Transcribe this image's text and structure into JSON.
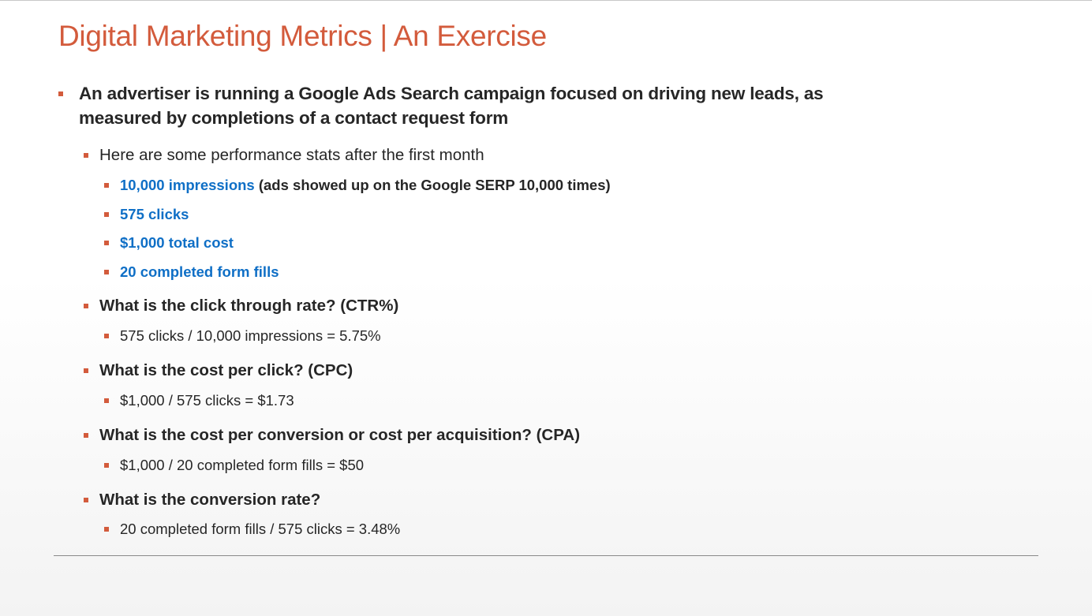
{
  "title": "Digital Marketing Metrics | An Exercise",
  "intro": {
    "line1": "An advertiser is running a Google Ads Search campaign focused on driving new leads, as",
    "line2": "measured by completions of a contact request form"
  },
  "stats_heading": "Here are some performance stats after the first month",
  "stats": [
    {
      "highlight": "10,000 impressions",
      "note": " (ads showed up on the Google SERP 10,000 times)"
    },
    {
      "highlight": "575 clicks"
    },
    {
      "highlight": "$1,000 total cost"
    },
    {
      "highlight": "20 completed form fills"
    }
  ],
  "questions": [
    {
      "question": "What is the click through rate? (CTR%)",
      "answer": "575 clicks / 10,000 impressions = 5.75%"
    },
    {
      "question": "What is the cost per click? (CPC)",
      "answer": "$1,000 / 575 clicks = $1.73"
    },
    {
      "question": "What is the cost per conversion or cost per acquisition? (CPA)",
      "answer": "$1,000 / 20 completed form fills = $50"
    },
    {
      "question": "What is the conversion rate?",
      "answer": "20 completed form fills / 575 clicks = 3.48%"
    }
  ],
  "colors": {
    "accent": "#d35b3c",
    "highlight": "#0f6fc6",
    "text": "#262626"
  }
}
